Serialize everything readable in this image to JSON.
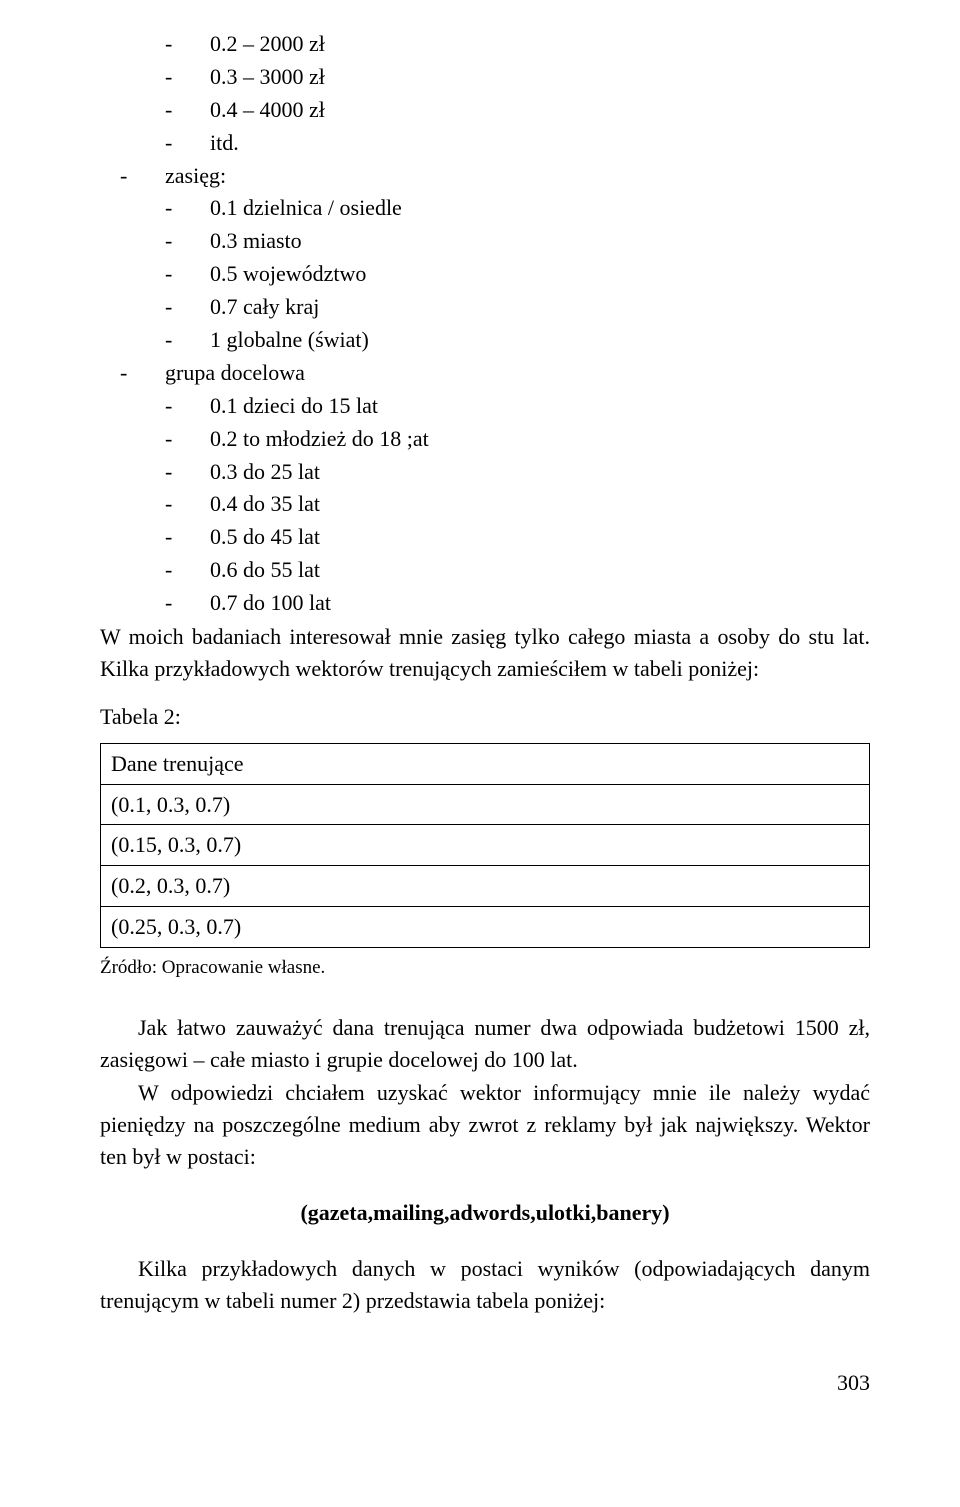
{
  "list1": [
    {
      "level": 2,
      "text": "0.2 – 2000 zł"
    },
    {
      "level": 2,
      "text": "0.3 – 3000 zł"
    },
    {
      "level": 2,
      "text": "0.4 – 4000 zł"
    },
    {
      "level": 2,
      "text": "itd."
    },
    {
      "level": 1,
      "text": "zasięg:"
    },
    {
      "level": 2,
      "text": "0.1 dzielnica / osiedle"
    },
    {
      "level": 2,
      "text": "0.3 miasto"
    },
    {
      "level": 2,
      "text": "0.5 województwo"
    },
    {
      "level": 2,
      "text": "0.7 cały kraj"
    },
    {
      "level": 2,
      "text": "1 globalne (świat)"
    },
    {
      "level": 1,
      "text": "grupa docelowa"
    },
    {
      "level": 2,
      "text": "0.1 dzieci do 15 lat"
    },
    {
      "level": 2,
      "text": "0.2 to młodzież do 18 ;at"
    },
    {
      "level": 2,
      "text": "0.3 do 25 lat"
    },
    {
      "level": 2,
      "text": "0.4 do 35 lat"
    },
    {
      "level": 2,
      "text": "0.5 do 45 lat"
    },
    {
      "level": 2,
      "text": "0.6 do 55 lat"
    },
    {
      "level": 2,
      "text": "0.7 do 100 lat"
    }
  ],
  "para_after_list": "W moich badaniach interesował mnie zasięg tylko całego miasta a osoby do stu lat. Kilka przykładowych wektorów trenujących zamieściłem w tabeli poniżej:",
  "table_caption": "Tabela 2:",
  "table2_header": "Dane trenujące",
  "table2_rows": [
    "(0.1, 0.3, 0.7)",
    "(0.15, 0.3, 0.7)",
    "(0.2, 0.3, 0.7)",
    "(0.25, 0.3, 0.7)"
  ],
  "source_note": "Źródło: Opracowanie własne.",
  "para1": "Jak łatwo zauważyć dana trenująca numer dwa odpowiada budżetowi 1500 zł, zasięgowi – całe miasto i grupie docelowej do 100 lat.",
  "para2": "W odpowiedzi chciałem uzyskać wektor informujący mnie ile należy wydać pieniędzy na poszczególne medium aby zwrot z reklamy był jak największy. Wektor ten był w postaci:",
  "vector_line": "(gazeta,mailing,adwords,ulotki,banery)",
  "para3": "Kilka przykładowych danych w postaci wyników (odpowiadających danym trenującym w tabeli numer 2) przedstawia tabela poniżej:",
  "page_number": "303",
  "bullet_char": "-"
}
